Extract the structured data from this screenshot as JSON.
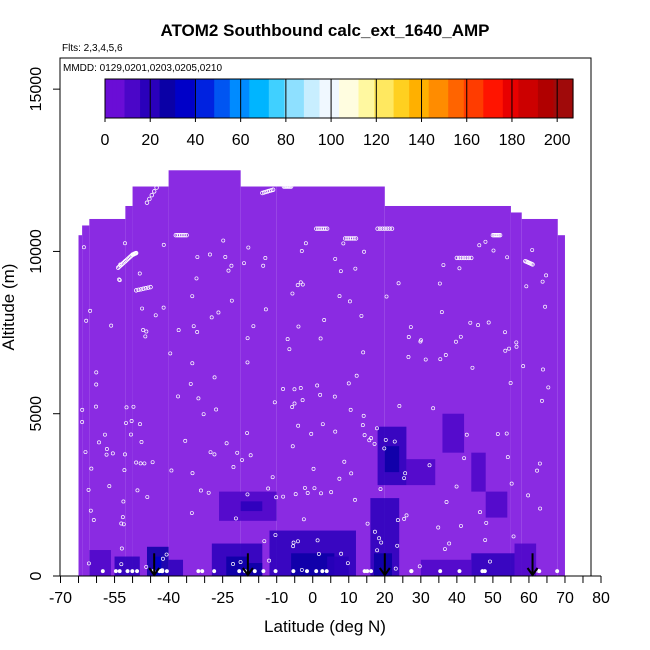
{
  "chart_data": {
    "type": "heatmap",
    "title": "ATOM2 Southbound calc_ext_1640_AMP",
    "flights_label": "Flts: 2,3,4,5,6",
    "dates_label": "MMDD: 0129,0201,0203,0205,0210",
    "xlabel": "Latitude (deg N)",
    "ylabel": "Altitude (m)",
    "xlim": [
      -70,
      80
    ],
    "ylim": [
      0,
      17500
    ],
    "x_ticks": [
      -70,
      -65,
      -60,
      -55,
      -50,
      -45,
      -40,
      -35,
      -30,
      -25,
      -20,
      -15,
      -10,
      -5,
      0,
      5,
      10,
      15,
      20,
      25,
      30,
      35,
      40,
      45,
      50,
      55,
      60,
      65,
      70,
      75,
      80
    ],
    "x_tick_labels": [
      "-70",
      "-55",
      "-40",
      "-25",
      "-10",
      "0",
      "10",
      "20",
      "30",
      "40",
      "50",
      "60",
      "70",
      "80"
    ],
    "y_ticks": [
      0,
      5000,
      10000,
      15000
    ],
    "y_tick_labels": [
      "0",
      "5000",
      "10000",
      "15000"
    ],
    "colorbar": {
      "min": 0,
      "max": 207,
      "tick_values": [
        0,
        20,
        40,
        60,
        80,
        100,
        120,
        140,
        160,
        180,
        200
      ],
      "tick_labels": [
        "0",
        "20",
        "40",
        "60",
        "80",
        "100",
        "120",
        "140",
        "160",
        "180",
        "200"
      ],
      "colors": [
        "#6a0dd6",
        "#4b06c8",
        "#2a00bb",
        "#0a00a6",
        "#0000c8",
        "#0022e0",
        "#0055f2",
        "#008bff",
        "#00b5ff",
        "#40d0ff",
        "#8ee0ff",
        "#c8eeff",
        "#f0f8ff",
        "#fffde0",
        "#fff8a0",
        "#ffe860",
        "#ffd020",
        "#ffb000",
        "#ff8c00",
        "#ff6400",
        "#ff3c00",
        "#ff1400",
        "#e80000",
        "#cc0000",
        "#b00000",
        "#a00a0a"
      ]
    },
    "background_value": 10,
    "background_color": "#8a2be2",
    "coverage": [
      {
        "lat": [
          -65,
          -64
        ],
        "alt": [
          0,
          10500
        ]
      },
      {
        "lat": [
          -64,
          -62
        ],
        "alt": [
          0,
          10800
        ]
      },
      {
        "lat": [
          -62,
          -52
        ],
        "alt": [
          0,
          11000
        ]
      },
      {
        "lat": [
          -52,
          -50
        ],
        "alt": [
          0,
          11400
        ]
      },
      {
        "lat": [
          -50,
          -40
        ],
        "alt": [
          0,
          12000
        ]
      },
      {
        "lat": [
          -40,
          -20
        ],
        "alt": [
          0,
          12500
        ]
      },
      {
        "lat": [
          -20,
          -10
        ],
        "alt": [
          0,
          12000
        ]
      },
      {
        "lat": [
          -10,
          20
        ],
        "alt": [
          0,
          12000
        ]
      },
      {
        "lat": [
          20,
          55
        ],
        "alt": [
          0,
          11400
        ]
      },
      {
        "lat": [
          55,
          58
        ],
        "alt": [
          0,
          11200
        ]
      },
      {
        "lat": [
          58,
          68
        ],
        "alt": [
          0,
          11000
        ]
      },
      {
        "lat": [
          68,
          70
        ],
        "alt": [
          0,
          10500
        ]
      }
    ],
    "cells": [
      {
        "lat": [
          -46,
          -40
        ],
        "alt": [
          0,
          900
        ],
        "value": 25
      },
      {
        "lat": [
          -44,
          -42
        ],
        "alt": [
          0,
          600
        ],
        "value": 32
      },
      {
        "lat": [
          -40,
          -36
        ],
        "alt": [
          0,
          500
        ],
        "value": 18
      },
      {
        "lat": [
          -55,
          -48
        ],
        "alt": [
          0,
          600
        ],
        "value": 16
      },
      {
        "lat": [
          -62,
          -56
        ],
        "alt": [
          0,
          800
        ],
        "value": 14
      },
      {
        "lat": [
          -28,
          -14
        ],
        "alt": [
          0,
          1000
        ],
        "value": 18
      },
      {
        "lat": [
          -24,
          -18
        ],
        "alt": [
          0,
          600
        ],
        "value": 26
      },
      {
        "lat": [
          -18,
          -14
        ],
        "alt": [
          0,
          400
        ],
        "value": 28
      },
      {
        "lat": [
          -26,
          -10
        ],
        "alt": [
          1700,
          2600
        ],
        "value": 14
      },
      {
        "lat": [
          -20,
          -14
        ],
        "alt": [
          2000,
          2300
        ],
        "value": 18
      },
      {
        "lat": [
          -12,
          12
        ],
        "alt": [
          0,
          1400
        ],
        "value": 17
      },
      {
        "lat": [
          -6,
          6
        ],
        "alt": [
          0,
          700
        ],
        "value": 24
      },
      {
        "lat": [
          4,
          10
        ],
        "alt": [
          0,
          600
        ],
        "value": 22
      },
      {
        "lat": [
          16,
          24
        ],
        "alt": [
          0,
          2400
        ],
        "value": 16
      },
      {
        "lat": [
          17,
          22
        ],
        "alt": [
          0,
          700
        ],
        "value": 25
      },
      {
        "lat": [
          18,
          26
        ],
        "alt": [
          2800,
          4600
        ],
        "value": 22
      },
      {
        "lat": [
          20,
          24
        ],
        "alt": [
          3200,
          4000
        ],
        "value": 30
      },
      {
        "lat": [
          26,
          34
        ],
        "alt": [
          2800,
          3600
        ],
        "value": 15
      },
      {
        "lat": [
          36,
          42
        ],
        "alt": [
          3800,
          5000
        ],
        "value": 13
      },
      {
        "lat": [
          44,
          48
        ],
        "alt": [
          2600,
          3800
        ],
        "value": 14
      },
      {
        "lat": [
          48,
          54
        ],
        "alt": [
          1800,
          2600
        ],
        "value": 14
      },
      {
        "lat": [
          44,
          56
        ],
        "alt": [
          0,
          700
        ],
        "value": 18
      },
      {
        "lat": [
          56,
          62
        ],
        "alt": [
          0,
          1000
        ],
        "value": 14
      },
      {
        "lat": [
          30,
          44
        ],
        "alt": [
          0,
          500
        ],
        "value": 14
      }
    ],
    "sample_tracks": [
      {
        "lat": [
          -54,
          -52,
          -50,
          -49
        ],
        "alt": [
          9500,
          9700,
          9900,
          9950
        ]
      },
      {
        "lat": [
          -49,
          -45
        ],
        "alt": [
          8800,
          8900
        ]
      },
      {
        "lat": [
          -46,
          -42
        ],
        "alt": [
          11500,
          12200
        ]
      },
      {
        "lat": [
          -38,
          -35
        ],
        "alt": [
          10500,
          10500
        ]
      },
      {
        "lat": [
          -14,
          -11
        ],
        "alt": [
          11800,
          11900
        ]
      },
      {
        "lat": [
          -8,
          -6
        ],
        "alt": [
          12000,
          12000
        ]
      },
      {
        "lat": [
          1,
          4
        ],
        "alt": [
          10700,
          10700
        ]
      },
      {
        "lat": [
          9,
          12
        ],
        "alt": [
          10400,
          10400
        ]
      },
      {
        "lat": [
          18,
          22
        ],
        "alt": [
          10700,
          10700
        ]
      },
      {
        "lat": [
          40,
          44
        ],
        "alt": [
          9800,
          9800
        ]
      },
      {
        "lat": [
          50,
          52
        ],
        "alt": [
          10500,
          10500
        ]
      },
      {
        "lat": [
          59,
          61
        ],
        "alt": [
          9700,
          9600
        ]
      }
    ],
    "arrows": [
      {
        "lat": -44,
        "alt_top": 700,
        "alt_bottom": 0
      },
      {
        "lat": -18,
        "alt_top": 700,
        "alt_bottom": 0
      },
      {
        "lat": 20,
        "alt_top": 700,
        "alt_bottom": 0
      },
      {
        "lat": 61,
        "alt_top": 700,
        "alt_bottom": 0
      }
    ]
  }
}
